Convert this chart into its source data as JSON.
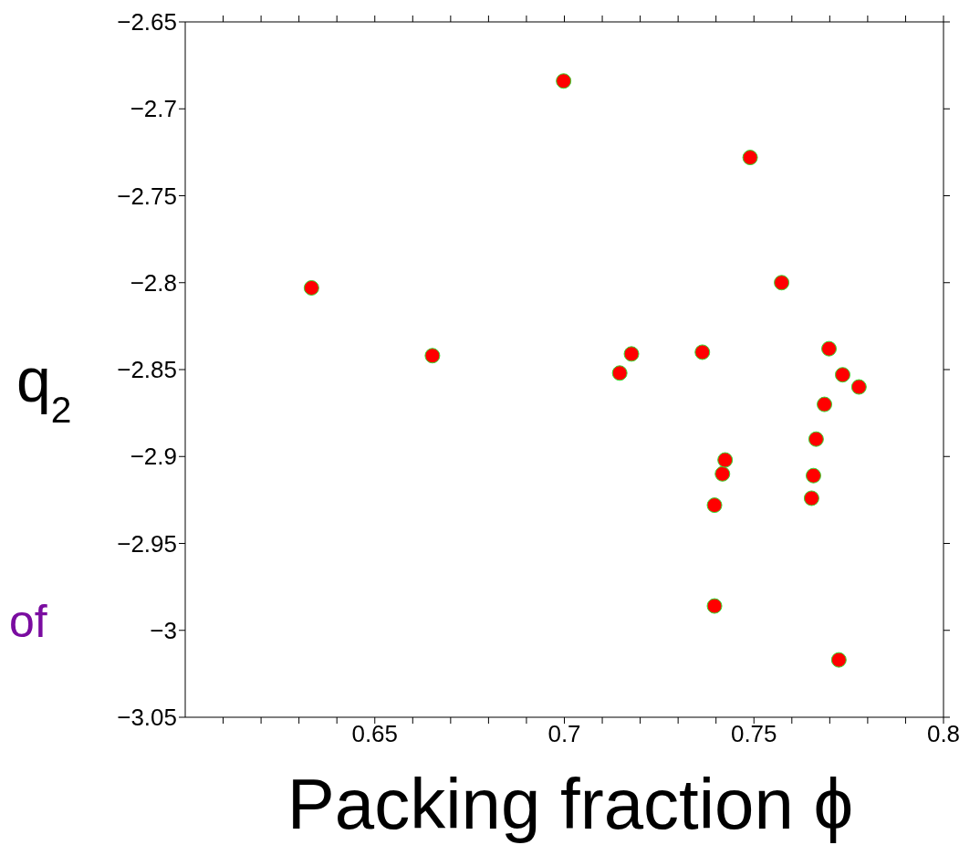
{
  "chart_data": {
    "type": "scatter",
    "xlabel": "Packing fraction ϕ",
    "ylabel": "q$_{2}$",
    "annotations": [
      "of"
    ],
    "x": [
      0.6333,
      0.6652,
      0.6998,
      0.7146,
      0.7177,
      0.7364,
      0.7396,
      0.7396,
      0.7417,
      0.7424,
      0.749,
      0.7573,
      0.7652,
      0.7657,
      0.7664,
      0.7686,
      0.7698,
      0.7724,
      0.7734,
      0.7777
    ],
    "series": [
      {
        "color": "#ff0000",
        "values": [
          -2.803,
          -2.842,
          -2.684,
          -2.852,
          -2.841,
          -2.84,
          -2.928,
          -2.986,
          -2.91,
          -2.902,
          -2.728,
          -2.8,
          -2.924,
          -2.911,
          -2.89,
          -2.87,
          -2.838,
          -3.017,
          -2.853,
          -2.86
        ]
      }
    ],
    "xlim": [
      0.6,
      0.8
    ],
    "xticks": [
      {
        "value": 0.61,
        "label": null
      },
      {
        "value": 0.62,
        "label": null
      },
      {
        "value": 0.63,
        "label": null
      },
      {
        "value": 0.64,
        "label": null
      },
      0.65,
      {
        "value": 0.66,
        "label": null
      },
      {
        "value": 0.67,
        "label": null
      },
      {
        "value": 0.68,
        "label": null
      },
      {
        "value": 0.69,
        "label": null
      },
      0.7,
      {
        "value": 0.71,
        "label": null
      },
      {
        "value": 0.72,
        "label": null
      },
      {
        "value": 0.73,
        "label": null
      },
      {
        "value": 0.74,
        "label": null
      },
      0.75,
      {
        "value": 0.76,
        "label": null
      },
      {
        "value": 0.77,
        "label": null
      },
      {
        "value": 0.78,
        "label": null
      },
      {
        "value": 0.79,
        "label": null
      },
      0.8
    ],
    "ylim": [
      -3.05,
      -2.65
    ],
    "yticks": [
      -3.05,
      -3,
      -2.95,
      -2.9,
      -2.85,
      -2.8,
      -2.75,
      -2.7,
      -2.65
    ],
    "marker": "circle"
  }
}
